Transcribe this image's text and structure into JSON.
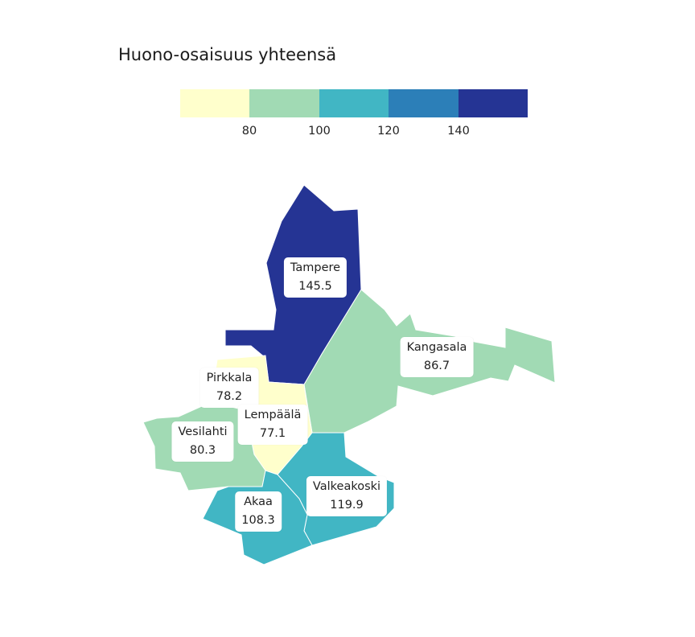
{
  "map": {
    "title": "Huono-osaisuus yhteensä",
    "legend": {
      "colors": [
        "#ffffcc",
        "#a1dab4",
        "#41b6c4",
        "#2c7fb8",
        "#253494"
      ],
      "ticks": [
        "80",
        "100",
        "120",
        "140"
      ]
    },
    "regions": [
      {
        "name": "Tampere",
        "value": "145.5",
        "color": "#253494"
      },
      {
        "name": "Kangasala",
        "value": "86.7",
        "color": "#a1dab4"
      },
      {
        "name": "Pirkkala",
        "value": "78.2",
        "color": "#ffffcc"
      },
      {
        "name": "Lempäälä",
        "value": "77.1",
        "color": "#ffffcc"
      },
      {
        "name": "Vesilahti",
        "value": "80.3",
        "color": "#a1dab4"
      },
      {
        "name": "Valkeakoski",
        "value": "119.9",
        "color": "#41b6c4"
      },
      {
        "name": "Akaa",
        "value": "108.3",
        "color": "#41b6c4"
      }
    ]
  }
}
